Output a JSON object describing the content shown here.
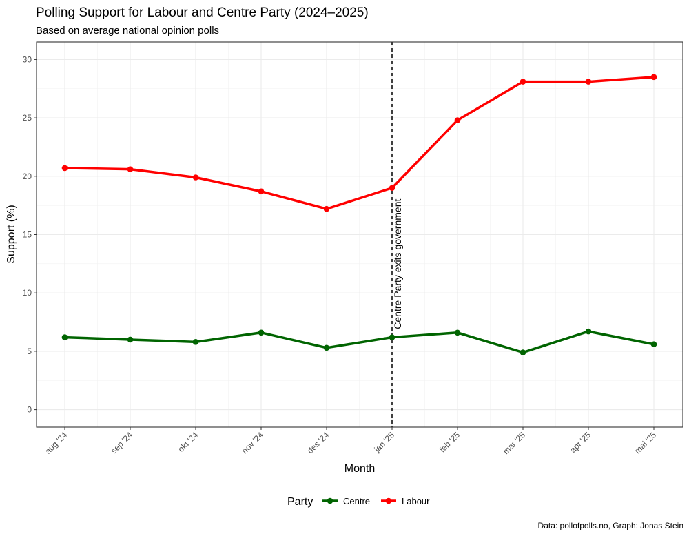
{
  "chart_data": {
    "type": "line",
    "title": "Polling Support for Labour and Centre Party (2024–2025)",
    "subtitle": "Based on average national opinion polls",
    "xlabel": "Month",
    "ylabel": "Support (%)",
    "categories": [
      "aug '24",
      "sep '24",
      "okt '24",
      "nov '24",
      "des '24",
      "jan '25",
      "feb '25",
      "mar '25",
      "apr '25",
      "mai '25"
    ],
    "ylim": [
      -1.5,
      31.5
    ],
    "yticks": [
      0,
      5,
      10,
      15,
      20,
      25,
      30
    ],
    "grid": true,
    "legend_title": "Party",
    "legend_position": "bottom",
    "series": [
      {
        "name": "Centre",
        "color": "#006400",
        "values": [
          6.2,
          6.0,
          5.8,
          6.6,
          5.3,
          6.2,
          6.6,
          4.9,
          6.7,
          5.6
        ]
      },
      {
        "name": "Labour",
        "color": "#ff0000",
        "values": [
          20.7,
          20.6,
          19.9,
          18.7,
          17.2,
          19.0,
          24.8,
          28.1,
          28.1,
          28.5
        ]
      }
    ],
    "vline": {
      "category": "jan '25",
      "label": "Centre Party exits government",
      "style": "dashed"
    },
    "caption": "Data: pollofpolls.no, Graph: Jonas Stein"
  }
}
